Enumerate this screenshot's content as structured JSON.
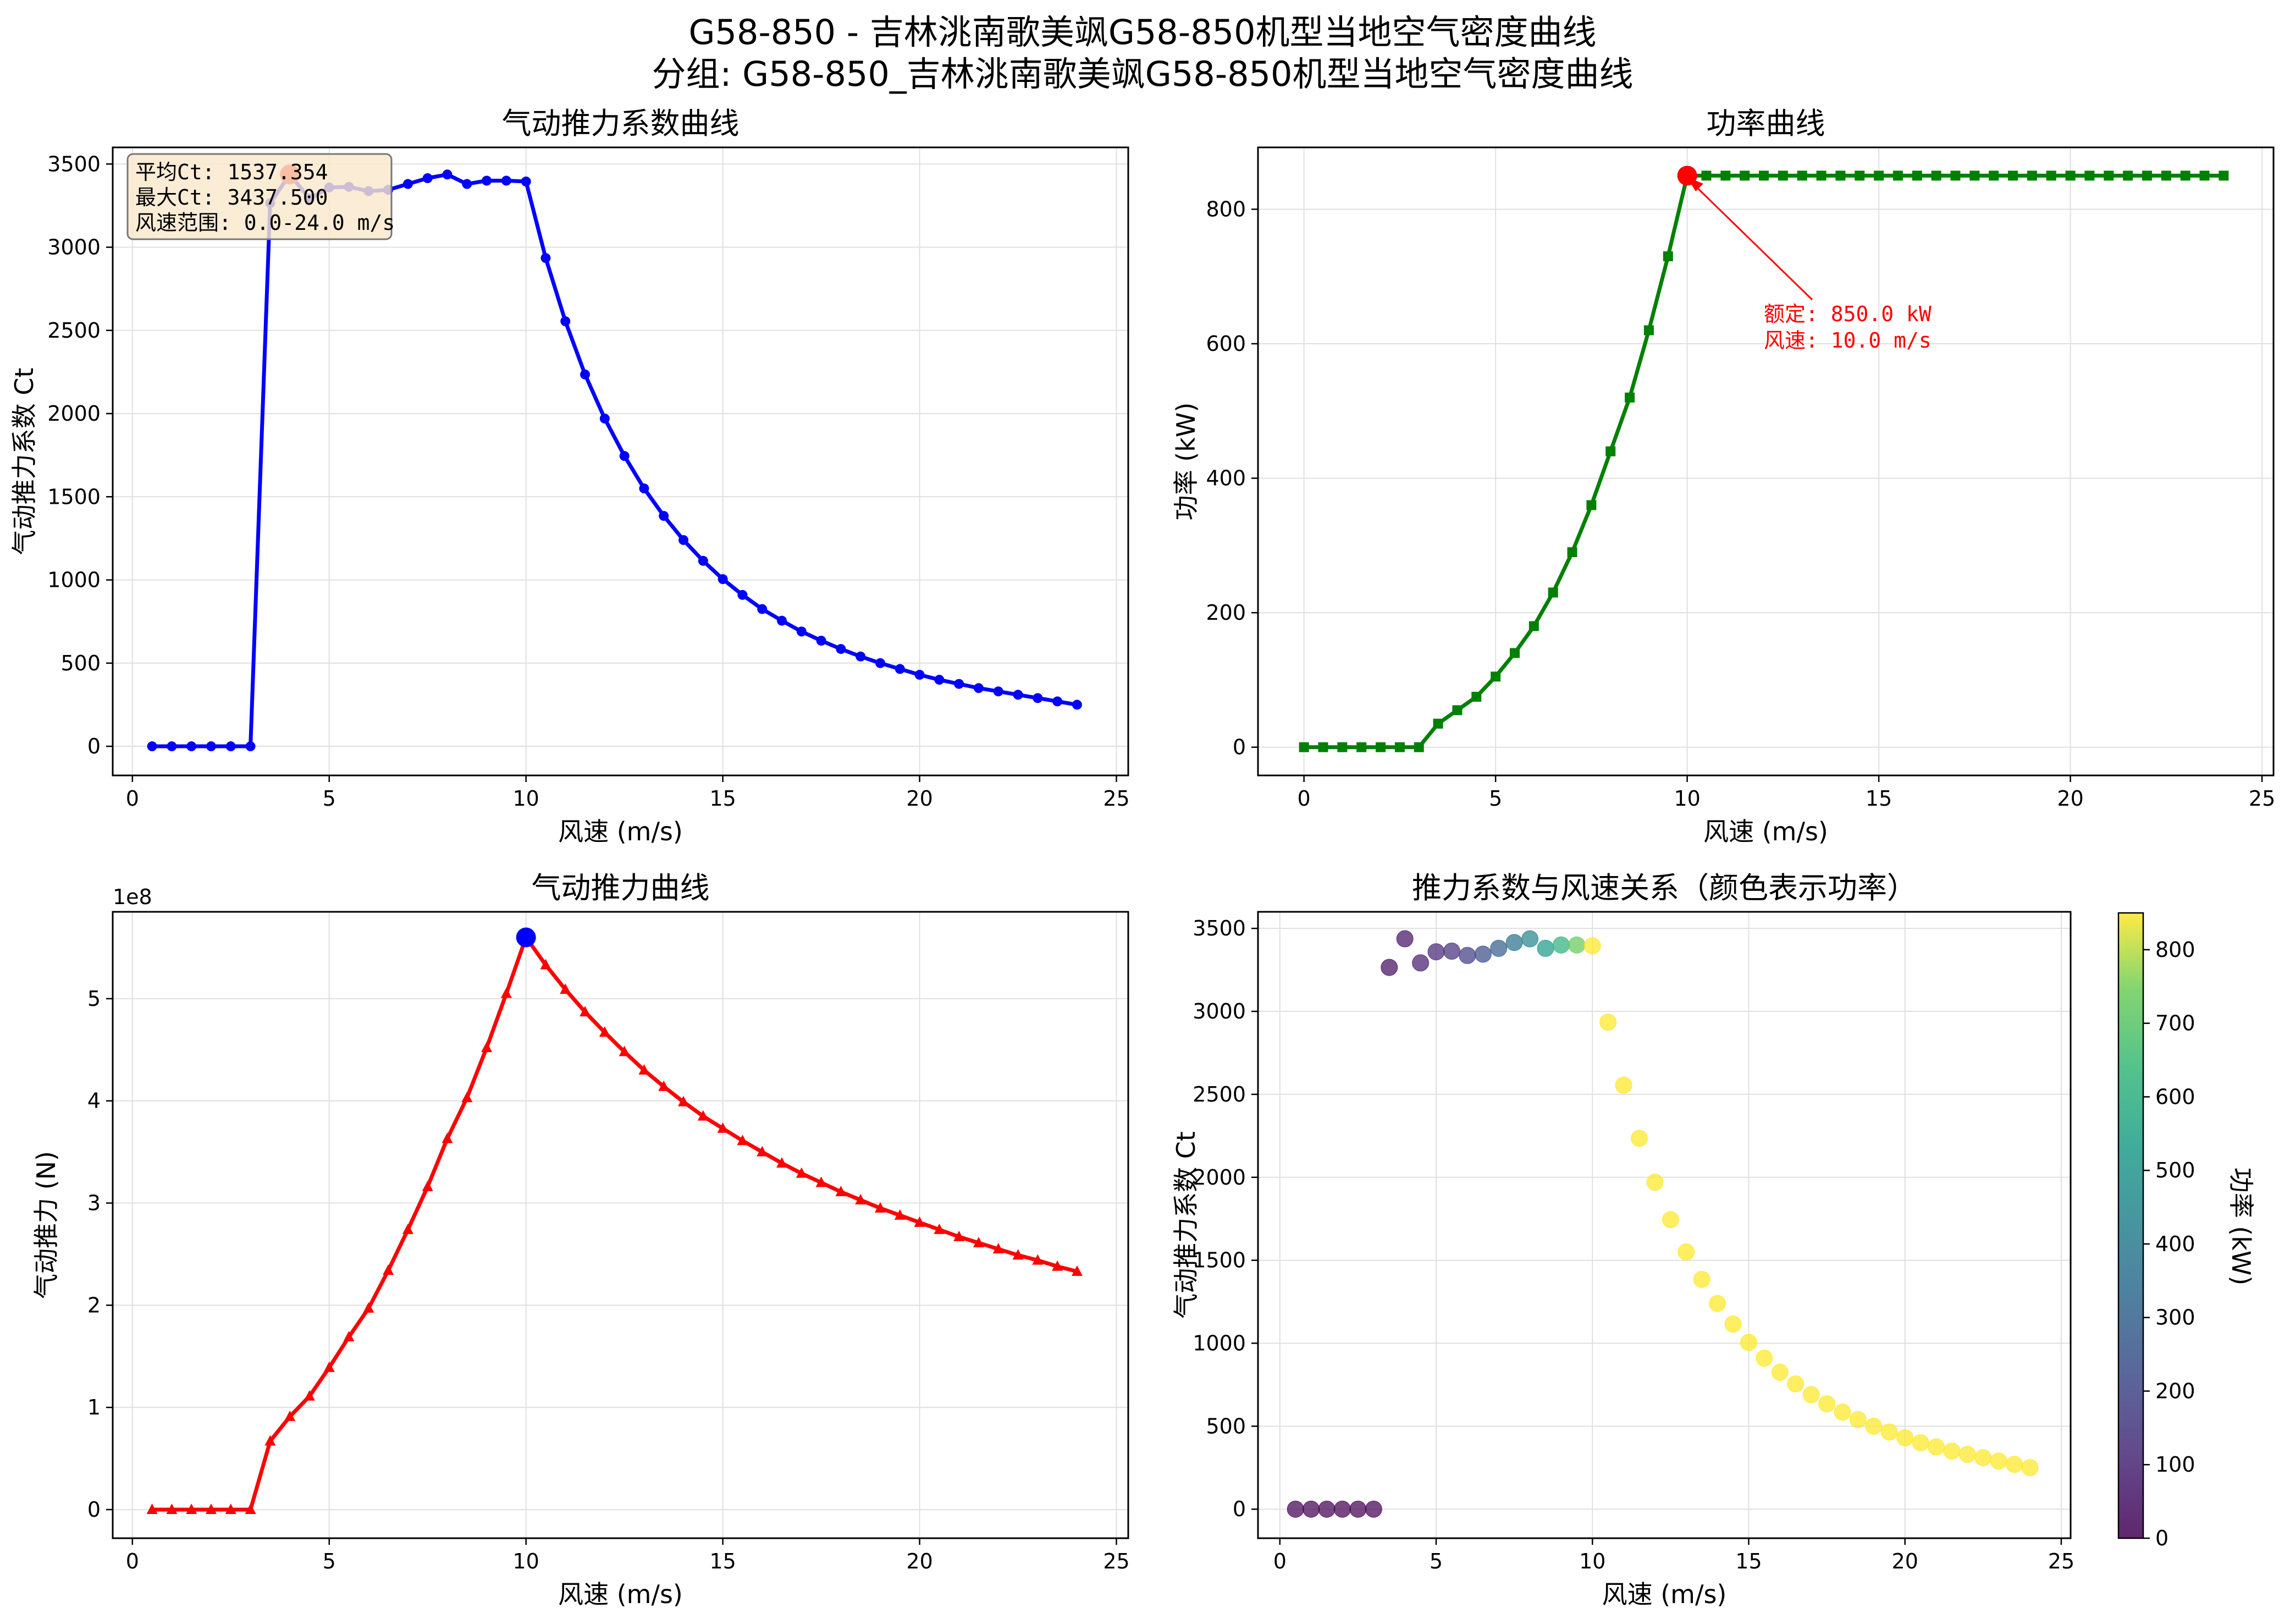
{
  "figure": {
    "title_line1": "G58-850 - 吉林洮南歌美飒G58-850机型当地空气密度曲线",
    "title_line2": "分组: G58-850_吉林洮南歌美飒G58-850机型当地空气密度曲线"
  },
  "colors": {
    "ct": "#0000ff",
    "power": "#008000",
    "thrust": "#ff0000",
    "highlight_red": "#ff0000",
    "highlight_blue": "#0000ff",
    "grid": "#e0e0e0",
    "stats_box": "#f9e8cc"
  },
  "stats_box": {
    "mean_ct": "平均Ct: 1537.354",
    "max_ct": "最大Ct: 3437.500",
    "wind_range": "风速范围: 0.0-24.0 m/s"
  },
  "power_annotation": {
    "line1": "额定: 850.0 kW",
    "line2": "风速: 10.0 m/s"
  },
  "colorbar": {
    "label": "功率 (kW)",
    "ticks": [
      "0",
      "100",
      "200",
      "300",
      "400",
      "500",
      "600",
      "700",
      "800"
    ]
  },
  "chart_data": [
    {
      "type": "line",
      "title": "气动推力系数曲线",
      "xlabel": "风速 (m/s)",
      "ylabel": "气动推力系数 Ct",
      "xlim": [
        -0.5,
        25.3
      ],
      "ylim": [
        -175,
        3600
      ],
      "xticks": [
        0,
        5,
        10,
        15,
        20,
        25
      ],
      "yticks": [
        0,
        500,
        1000,
        1500,
        2000,
        2500,
        3000,
        3500
      ],
      "grid": true,
      "marker": "circle",
      "highlight": {
        "x": 4.0,
        "y": 3437.5
      },
      "x": [
        0.5,
        1,
        1.5,
        2,
        2.5,
        3,
        3.5,
        4,
        4.5,
        5,
        5.5,
        6,
        6.5,
        7,
        7.5,
        8,
        8.5,
        9,
        9.5,
        10,
        10.5,
        11,
        11.5,
        12,
        12.5,
        13,
        13.5,
        14,
        14.5,
        15,
        15.5,
        16,
        16.5,
        17,
        17.5,
        18,
        18.5,
        19,
        19.5,
        20,
        20.5,
        21,
        21.5,
        22,
        22.5,
        23,
        23.5,
        24
      ],
      "y": [
        0,
        0,
        0,
        0,
        0,
        0,
        3265,
        3437.5,
        3292,
        3359,
        3363,
        3337,
        3345,
        3380,
        3415,
        3437,
        3380,
        3400,
        3400,
        3395,
        2935,
        2555,
        2235,
        1970,
        1745,
        1550,
        1385,
        1240,
        1115,
        1005,
        910,
        825,
        755,
        690,
        635,
        585,
        540,
        500,
        465,
        430,
        400,
        375,
        350,
        330,
        310,
        290,
        270,
        250
      ]
    },
    {
      "type": "line",
      "title": "功率曲线",
      "xlabel": "风速 (m/s)",
      "ylabel": "功率 (kW)",
      "xlim": [
        -1.2,
        25.3
      ],
      "ylim": [
        -42,
        892
      ],
      "xticks": [
        0,
        5,
        10,
        15,
        20,
        25
      ],
      "yticks": [
        0,
        200,
        400,
        600,
        800
      ],
      "grid": true,
      "marker": "square",
      "highlight": {
        "x": 10.0,
        "y": 850
      },
      "x": [
        0,
        0.5,
        1,
        1.5,
        2,
        2.5,
        3,
        3.5,
        4,
        4.5,
        5,
        5.5,
        6,
        6.5,
        7,
        7.5,
        8,
        8.5,
        9,
        9.5,
        10,
        10.5,
        11,
        11.5,
        12,
        12.5,
        13,
        13.5,
        14,
        14.5,
        15,
        15.5,
        16,
        16.5,
        17,
        17.5,
        18,
        18.5,
        19,
        19.5,
        20,
        20.5,
        21,
        21.5,
        22,
        22.5,
        23,
        23.5,
        24
      ],
      "y": [
        0,
        0,
        0,
        0,
        0,
        0,
        0,
        35,
        55,
        75,
        105,
        140,
        180,
        230,
        290,
        360,
        440,
        520,
        620,
        730,
        850,
        850,
        850,
        850,
        850,
        850,
        850,
        850,
        850,
        850,
        850,
        850,
        850,
        850,
        850,
        850,
        850,
        850,
        850,
        850,
        850,
        850,
        850,
        850,
        850,
        850,
        850,
        850,
        850
      ]
    },
    {
      "type": "line",
      "title": "气动推力曲线",
      "xlabel": "风速 (m/s)",
      "ylabel": "气动推力 (N)",
      "offset_label": "1e8",
      "xlim": [
        -0.5,
        25.3
      ],
      "ylim": [
        -0.28,
        5.85
      ],
      "xticks": [
        0,
        5,
        10,
        15,
        20,
        25
      ],
      "yticks": [
        0,
        1,
        2,
        3,
        4,
        5
      ],
      "grid": true,
      "marker": "triangle",
      "highlight": {
        "x": 10.0,
        "y": 5.6
      },
      "x": [
        0.5,
        1,
        1.5,
        2,
        2.5,
        3,
        3.5,
        4,
        4.5,
        5,
        5.5,
        6,
        6.5,
        7,
        7.5,
        8,
        8.5,
        9,
        9.5,
        10,
        10.5,
        11,
        11.5,
        12,
        12.5,
        13,
        13.5,
        14,
        14.5,
        15,
        15.5,
        16,
        16.5,
        17,
        17.5,
        18,
        18.5,
        19,
        19.5,
        20,
        20.5,
        21,
        21.5,
        22,
        22.5,
        23,
        23.5,
        24
      ],
      "y": [
        0,
        0,
        0,
        0,
        0,
        0,
        0.67,
        0.91,
        1.11,
        1.39,
        1.69,
        1.97,
        2.34,
        2.74,
        3.16,
        3.63,
        4.03,
        4.52,
        5.05,
        5.6,
        5.33,
        5.09,
        4.87,
        4.67,
        4.48,
        4.3,
        4.14,
        3.99,
        3.85,
        3.73,
        3.61,
        3.5,
        3.39,
        3.29,
        3.2,
        3.11,
        3.03,
        2.95,
        2.88,
        2.81,
        2.74,
        2.67,
        2.61,
        2.55,
        2.49,
        2.44,
        2.38,
        2.33
      ]
    },
    {
      "type": "scatter",
      "title": "推力系数与风速关系（颜色表示功率）",
      "xlabel": "风速 (m/s)",
      "ylabel": "气动推力系数 Ct",
      "xlim": [
        -0.7,
        25.3
      ],
      "ylim": [
        -175,
        3600
      ],
      "xticks": [
        0,
        5,
        10,
        15,
        20,
        25
      ],
      "yticks": [
        0,
        500,
        1000,
        1500,
        2000,
        2500,
        3000,
        3500
      ],
      "grid": true,
      "color_by": "power_kW",
      "color_range": [
        0,
        850
      ],
      "x": [
        0.5,
        1,
        1.5,
        2,
        2.5,
        3,
        3.5,
        4,
        4.5,
        5,
        5.5,
        6,
        6.5,
        7,
        7.5,
        8,
        8.5,
        9,
        9.5,
        10,
        10.5,
        11,
        11.5,
        12,
        12.5,
        13,
        13.5,
        14,
        14.5,
        15,
        15.5,
        16,
        16.5,
        17,
        17.5,
        18,
        18.5,
        19,
        19.5,
        20,
        20.5,
        21,
        21.5,
        22,
        22.5,
        23,
        23.5,
        24
      ],
      "y": [
        0,
        0,
        0,
        0,
        0,
        0,
        3265,
        3437.5,
        3292,
        3359,
        3363,
        3337,
        3345,
        3380,
        3415,
        3437,
        3380,
        3400,
        3400,
        3395,
        2935,
        2555,
        2235,
        1970,
        1745,
        1550,
        1385,
        1240,
        1115,
        1005,
        910,
        825,
        755,
        690,
        635,
        585,
        540,
        500,
        465,
        430,
        400,
        375,
        350,
        330,
        310,
        290,
        270,
        250
      ],
      "power": [
        0,
        0,
        0,
        0,
        0,
        0,
        35,
        55,
        75,
        105,
        140,
        180,
        230,
        290,
        360,
        440,
        520,
        620,
        730,
        850,
        850,
        850,
        850,
        850,
        850,
        850,
        850,
        850,
        850,
        850,
        850,
        850,
        850,
        850,
        850,
        850,
        850,
        850,
        850,
        850,
        850,
        850,
        850,
        850,
        850,
        850,
        850,
        850
      ]
    }
  ]
}
